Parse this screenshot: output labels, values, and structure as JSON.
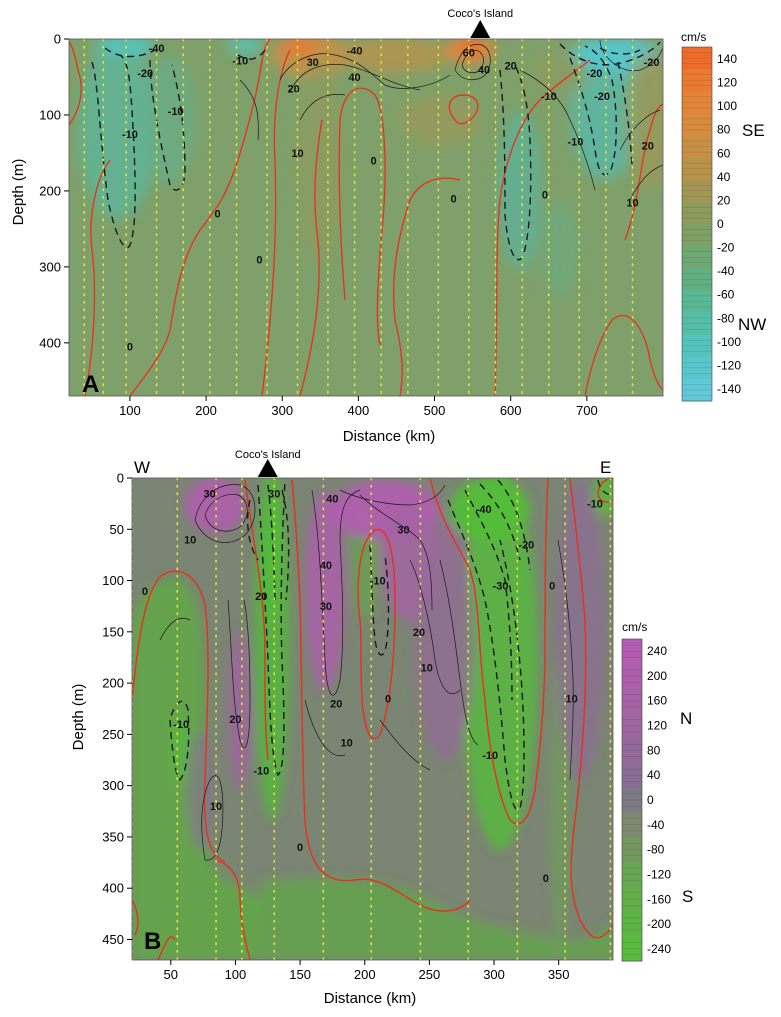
{
  "chart_data": [
    {
      "type": "heatmap",
      "panel_label": "A",
      "xlabel": "Distance (km)",
      "ylabel": "Depth (m)",
      "xlim": [
        20,
        800
      ],
      "ylim": [
        0,
        470
      ],
      "y_inverted": true,
      "xticks": [
        100,
        200,
        300,
        400,
        500,
        600,
        700
      ],
      "yticks": [
        0,
        100,
        200,
        300,
        400
      ],
      "station_x": [
        40,
        65,
        95,
        135,
        170,
        205,
        240,
        280,
        320,
        360,
        395,
        430,
        465,
        505,
        545,
        580,
        615,
        650,
        690,
        725,
        760
      ],
      "marker": {
        "label": "Coco's Island",
        "x": 560
      },
      "colorbar": {
        "unit": "cm/s",
        "ticks": [
          140,
          120,
          100,
          80,
          60,
          40,
          20,
          0,
          -20,
          -40,
          -60,
          -80,
          -100,
          -120,
          -140
        ],
        "positive_label": "SE",
        "negative_label": "NW",
        "colors": [
          "#ef6b2a",
          "#ea7a33",
          "#e2853a",
          "#d78b3f",
          "#c98f45",
          "#b8934c",
          "#a39655",
          "#8f9a5e",
          "#7ea066",
          "#6ea873",
          "#62b082",
          "#5ab894",
          "#55bea7",
          "#55c3bb",
          "#5ac6cc",
          "#62c8d8"
        ]
      },
      "contour_labels": [
        {
          "text": "-40",
          "x": 135,
          "y": 12
        },
        {
          "text": "-20",
          "x": 120,
          "y": 45
        },
        {
          "text": "-10",
          "x": 160,
          "y": 95
        },
        {
          "text": "-10",
          "x": 100,
          "y": 125
        },
        {
          "text": "0",
          "x": 215,
          "y": 230
        },
        {
          "text": "0",
          "x": 270,
          "y": 290
        },
        {
          "text": "0",
          "x": 100,
          "y": 405
        },
        {
          "text": "-10",
          "x": 245,
          "y": 28
        },
        {
          "text": "30",
          "x": 340,
          "y": 30
        },
        {
          "text": "-40",
          "x": 395,
          "y": 15
        },
        {
          "text": "40",
          "x": 395,
          "y": 50
        },
        {
          "text": "20",
          "x": 315,
          "y": 65
        },
        {
          "text": "10",
          "x": 320,
          "y": 150
        },
        {
          "text": "0",
          "x": 420,
          "y": 160
        },
        {
          "text": "0",
          "x": 525,
          "y": 210
        },
        {
          "text": "60",
          "x": 545,
          "y": 18
        },
        {
          "text": "40",
          "x": 565,
          "y": 40
        },
        {
          "text": "20",
          "x": 600,
          "y": 35
        },
        {
          "text": "-10",
          "x": 650,
          "y": 75
        },
        {
          "text": "-10",
          "x": 685,
          "y": 135
        },
        {
          "text": "0",
          "x": 645,
          "y": 205
        },
        {
          "text": "20",
          "x": 780,
          "y": 140
        },
        {
          "text": "10",
          "x": 760,
          "y": 215
        },
        {
          "text": "-20",
          "x": 720,
          "y": 75
        },
        {
          "text": "-20",
          "x": 710,
          "y": 45
        },
        {
          "text": "-20",
          "x": 785,
          "y": 30
        }
      ]
    },
    {
      "type": "heatmap",
      "panel_label": "B",
      "xlabel": "Distance (km)",
      "ylabel": "Depth (m)",
      "xlim": [
        20,
        392
      ],
      "ylim": [
        0,
        470
      ],
      "y_inverted": true,
      "xticks": [
        50,
        100,
        150,
        200,
        250,
        300,
        350
      ],
      "yticks": [
        0,
        50,
        100,
        150,
        200,
        250,
        300,
        350,
        400,
        450
      ],
      "station_x": [
        20,
        55,
        85,
        105,
        130,
        168,
        205,
        243,
        280,
        318,
        355,
        390
      ],
      "marker": {
        "label": "Coco's Island",
        "x": 125
      },
      "corner_labels": {
        "left": "W",
        "right": "E"
      },
      "colorbar": {
        "unit": "cm/s",
        "ticks": [
          240,
          200,
          160,
          120,
          80,
          40,
          0,
          -40,
          -80,
          -120,
          -160,
          -200,
          -240
        ],
        "positive_label": "N",
        "negative_label": "S",
        "colors": [
          "#b35cb1",
          "#ad5fac",
          "#a663a6",
          "#9e67a0",
          "#95699a",
          "#8b6e94",
          "#7e7a86",
          "#7d8a70",
          "#72985e",
          "#68a652",
          "#62ae4a",
          "#5cb443",
          "#58b93f"
        ]
      },
      "contour_labels": [
        {
          "text": "30",
          "x": 80,
          "y": 15
        },
        {
          "text": "30",
          "x": 130,
          "y": 15
        },
        {
          "text": "10",
          "x": 65,
          "y": 60
        },
        {
          "text": "0",
          "x": 30,
          "y": 110
        },
        {
          "text": "20",
          "x": 120,
          "y": 115
        },
        {
          "text": "40",
          "x": 175,
          "y": 20
        },
        {
          "text": "40",
          "x": 170,
          "y": 85
        },
        {
          "text": "30",
          "x": 170,
          "y": 125
        },
        {
          "text": "30",
          "x": 230,
          "y": 50
        },
        {
          "text": "-10",
          "x": 210,
          "y": 100
        },
        {
          "text": "20",
          "x": 242,
          "y": 150
        },
        {
          "text": "10",
          "x": 248,
          "y": 185
        },
        {
          "text": "20",
          "x": 178,
          "y": 220
        },
        {
          "text": "0",
          "x": 218,
          "y": 215
        },
        {
          "text": "10",
          "x": 186,
          "y": 258
        },
        {
          "text": "20",
          "x": 100,
          "y": 235
        },
        {
          "text": "-10",
          "x": 120,
          "y": 285
        },
        {
          "text": "-10",
          "x": 58,
          "y": 240
        },
        {
          "text": "10",
          "x": 85,
          "y": 320
        },
        {
          "text": "0",
          "x": 150,
          "y": 360
        },
        {
          "text": "-40",
          "x": 292,
          "y": 30
        },
        {
          "text": "-20",
          "x": 325,
          "y": 65
        },
        {
          "text": "-30",
          "x": 305,
          "y": 105
        },
        {
          "text": "0",
          "x": 345,
          "y": 105
        },
        {
          "text": "-10",
          "x": 297,
          "y": 270
        },
        {
          "text": "10",
          "x": 360,
          "y": 215
        },
        {
          "text": "0",
          "x": 340,
          "y": 390
        },
        {
          "text": "-10",
          "x": 378,
          "y": 25
        }
      ]
    }
  ],
  "markup": {
    "a": {
      "xlabel": "Distance (km)",
      "ylabel": "Depth (m)",
      "panel": "A",
      "island": "Coco's Island",
      "cb_unit": "cm/s",
      "pos": "SE",
      "neg": "NW"
    },
    "b": {
      "xlabel": "Distance (km)",
      "ylabel": "Depth (m)",
      "panel": "B",
      "island": "Coco's Island",
      "cb_unit": "cm/s",
      "pos": "N",
      "neg": "S",
      "west": "W",
      "east": "E"
    }
  },
  "colors": {
    "zero_contour": "#e8301c",
    "station_dots": "#e8e43a",
    "contour_line": "#1a1a1a"
  }
}
